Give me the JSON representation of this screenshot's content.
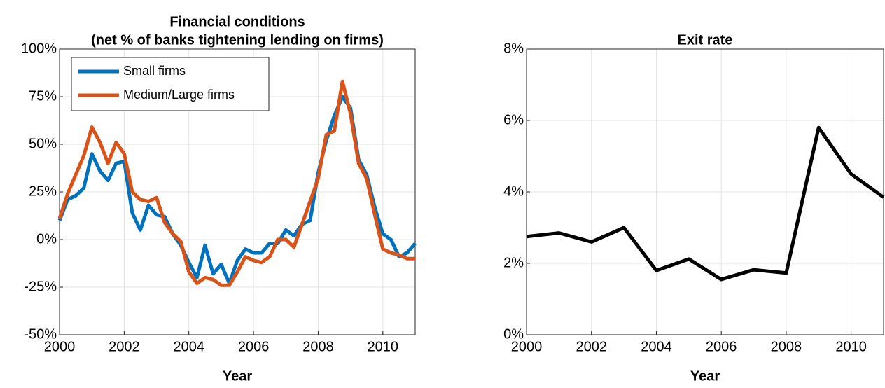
{
  "chart_data": [
    {
      "type": "line",
      "title": [
        "Financial conditions",
        "(net % of banks tightening lending on firms)"
      ],
      "x_label": "Year",
      "x": [
        2000,
        2000.25,
        2000.5,
        2000.75,
        2001,
        2001.25,
        2001.5,
        2001.75,
        2002,
        2002.25,
        2002.5,
        2002.75,
        2003,
        2003.25,
        2003.5,
        2003.75,
        2004,
        2004.25,
        2004.5,
        2004.75,
        2005,
        2005.25,
        2005.5,
        2005.75,
        2006,
        2006.25,
        2006.5,
        2006.75,
        2007,
        2007.25,
        2007.5,
        2007.75,
        2008,
        2008.25,
        2008.5,
        2008.75,
        2009,
        2009.25,
        2009.5,
        2009.75,
        2010,
        2010.25,
        2010.5,
        2010.75,
        2011
      ],
      "series": [
        {
          "name": "Small firms",
          "color": "#0072bd",
          "values": [
            10,
            21,
            23,
            27,
            45,
            36,
            31,
            40,
            41,
            14,
            5,
            18,
            13,
            12,
            3,
            -3,
            -12,
            -20,
            -3,
            -18,
            -13,
            -23,
            -11,
            -5,
            -7,
            -7,
            -2,
            -2,
            5,
            2,
            8,
            10,
            35,
            52,
            65,
            75,
            69,
            42,
            34,
            17,
            3,
            0,
            -9,
            -7,
            -2
          ]
        },
        {
          "name": "Medium/Large firms",
          "color": "#d95319",
          "values": [
            11,
            24,
            34,
            44,
            59,
            51,
            40,
            51,
            45,
            25,
            21,
            20,
            22,
            9,
            3,
            -1,
            -17,
            -23,
            -20,
            -21,
            -24,
            -24,
            -17,
            -9,
            -11,
            -12,
            -9,
            0,
            0,
            -4,
            8,
            20,
            32,
            55,
            57,
            83,
            66,
            40,
            32,
            13,
            -5,
            -7,
            -8,
            -10,
            -10
          ]
        }
      ],
      "xlim": [
        2000,
        2011
      ],
      "xticks": [
        2000,
        2002,
        2004,
        2006,
        2008,
        2010
      ],
      "ylim": [
        -50,
        100
      ],
      "yticks": [
        {
          "value": -50,
          "label": "-50%"
        },
        {
          "value": -25,
          "label": "-25%"
        },
        {
          "value": 0,
          "label": "0%"
        },
        {
          "value": 25,
          "label": "25%"
        },
        {
          "value": 50,
          "label": "50%"
        },
        {
          "value": 75,
          "label": "75%"
        },
        {
          "value": 100,
          "label": "100%"
        }
      ],
      "grid": true,
      "legend": "upper-left"
    },
    {
      "type": "line",
      "title": [
        "Exit rate"
      ],
      "x_label": "Year",
      "x": [
        2000,
        2001,
        2002,
        2003,
        2004,
        2005,
        2006,
        2007,
        2008,
        2009,
        2010,
        2011
      ],
      "values": [
        2.75,
        2.85,
        2.6,
        3.0,
        1.8,
        2.12,
        1.55,
        1.82,
        1.73,
        5.8,
        4.5,
        3.85
      ],
      "color": "#000000",
      "xlim": [
        2000,
        2011
      ],
      "xticks": [
        2000,
        2002,
        2004,
        2006,
        2008,
        2010
      ],
      "ylim": [
        0,
        8
      ],
      "yticks": [
        {
          "value": 0,
          "label": "0%"
        },
        {
          "value": 2,
          "label": "2%"
        },
        {
          "value": 4,
          "label": "4%"
        },
        {
          "value": 6,
          "label": "6%"
        },
        {
          "value": 8,
          "label": "8%"
        }
      ],
      "grid": true
    }
  ]
}
